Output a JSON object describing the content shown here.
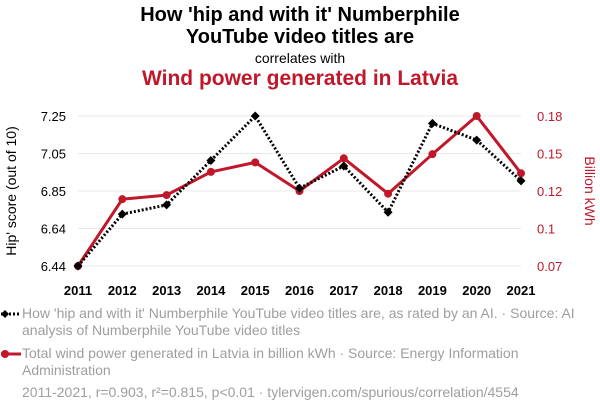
{
  "title_line1": "How 'hip and with it' Numberphile",
  "title_line2": "YouTube video titles are",
  "correlates_text": "correlates with",
  "title_line3": "Wind power generated in Latvia",
  "colors": {
    "series1": "#000000",
    "series2": "#c0182a",
    "grid": "#e9e9e9",
    "muted": "#9e9e9e"
  },
  "legend": {
    "series1": "How 'hip and with it' Numberphile YouTube video titles are, as rated by an AI. · Source: AI analysis of Numberphile YouTube video titles",
    "series2": "Total wind power generated in Latvia in billion kWh · Source: Energy Information Administration"
  },
  "footer": "2011-2021, r=0.903, r²=0.815, p<0.01 · tylervigen.com/spurious/correlation/4554",
  "chart_data": {
    "type": "line",
    "x": [
      2011,
      2012,
      2013,
      2014,
      2015,
      2016,
      2017,
      2018,
      2019,
      2020,
      2021
    ],
    "ylabel_left": "Hip' score (out of 10)",
    "ylabel_right": "Billion kWh",
    "left_ticks": [
      "6.44",
      "6.64",
      "6.85",
      "7.05",
      "7.25"
    ],
    "left_range": [
      6.44,
      7.25
    ],
    "right_ticks": [
      "0.07",
      "0.1",
      "0.12",
      "0.15",
      "0.18"
    ],
    "right_range": [
      0.07,
      0.18
    ],
    "grid": true,
    "series": [
      {
        "name": "How 'hip and with it' Numberphile YouTube video titles are",
        "axis": "left",
        "style": "dotted-diamond",
        "values": [
          6.44,
          6.72,
          6.77,
          7.01,
          7.25,
          6.86,
          6.98,
          6.73,
          7.21,
          7.12,
          6.9
        ]
      },
      {
        "name": "Wind power generated in Latvia",
        "axis": "right",
        "style": "solid-circle",
        "values": [
          0.07,
          0.119,
          0.122,
          0.139,
          0.146,
          0.125,
          0.149,
          0.123,
          0.152,
          0.18,
          0.138
        ]
      }
    ]
  }
}
